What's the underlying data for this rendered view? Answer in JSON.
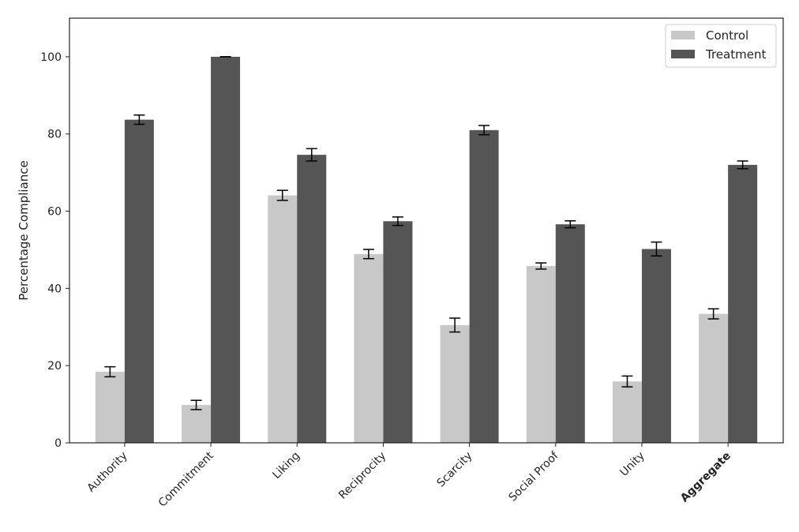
{
  "chart_data": {
    "type": "bar",
    "title": "",
    "xlabel": "",
    "ylabel": "Percentage Compliance",
    "ylim": [
      0,
      110
    ],
    "yticks": [
      0,
      20,
      40,
      60,
      80,
      100
    ],
    "grid": false,
    "legend_position": "top-right",
    "categories": [
      "Authority",
      "Commitment",
      "Liking",
      "Reciprocity",
      "Scarcity",
      "Social Proof",
      "Unity",
      "Aggregate"
    ],
    "bold_categories": [
      "Aggregate"
    ],
    "series": [
      {
        "name": "Control",
        "color": "#c8c8c8",
        "values": [
          18.4,
          9.8,
          64.1,
          48.9,
          30.5,
          45.8,
          15.9,
          33.4
        ],
        "errors": [
          1.3,
          1.2,
          1.3,
          1.2,
          1.8,
          0.8,
          1.4,
          1.3
        ]
      },
      {
        "name": "Treatment",
        "color": "#555555",
        "values": [
          83.7,
          100.0,
          74.6,
          57.4,
          81.0,
          56.6,
          50.2,
          72.0
        ],
        "errors": [
          1.2,
          0.0,
          1.6,
          1.1,
          1.2,
          0.9,
          1.8,
          1.0
        ]
      }
    ]
  }
}
